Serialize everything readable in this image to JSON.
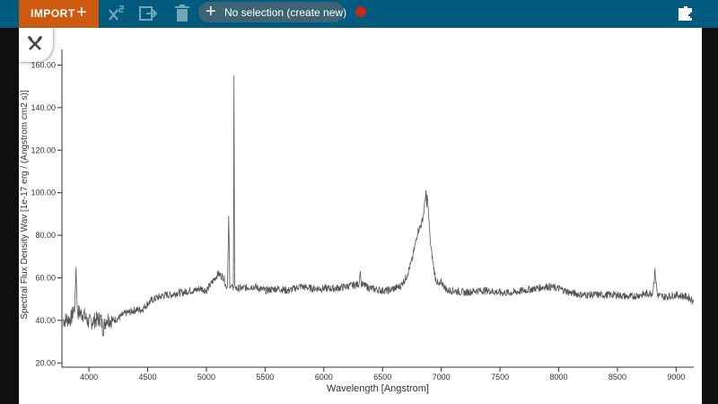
{
  "toolbar": {
    "import_label": "IMPORT",
    "import_plus": "+",
    "selection_plus": "+",
    "selection_label": "No selection (create new)",
    "icons": [
      "x-squared-icon",
      "export-icon",
      "trash-icon",
      "record-dot",
      "plugin-icon"
    ],
    "colors": {
      "bar": "#005b7f",
      "import": "#cc5a10",
      "record": "#c62a1d"
    }
  },
  "chart_data": {
    "type": "line",
    "xlabel": "Wavelength [Angstrom]",
    "ylabel": "Spectral Flux Density Wav [1e-17 erg / (Angstrom cm2 s)]",
    "xlim": [
      3770,
      9150
    ],
    "ylim": [
      18,
      164
    ],
    "x_ticks": [
      "4000",
      "4500",
      "5000",
      "5500",
      "6000",
      "6500",
      "7000",
      "7500",
      "8000",
      "8500",
      "9000"
    ],
    "y_ticks": [
      "20.00",
      "40.00",
      "60.00",
      "80.00",
      "100.00",
      "120.00",
      "140.00",
      "160.00"
    ],
    "series": [
      {
        "color": "#555555",
        "x": [
          3780,
          3850,
          3880,
          3890,
          3900,
          3950,
          4000,
          4050,
          4100,
          4120,
          4150,
          4200,
          4250,
          4300,
          4350,
          4400,
          4450,
          4500,
          4550,
          4600,
          4650,
          4700,
          4750,
          4800,
          4850,
          4900,
          4950,
          5000,
          5050,
          5100,
          5150,
          5170,
          5180,
          5190,
          5200,
          5210,
          5220,
          5230,
          5235,
          5240,
          5250,
          5300,
          5400,
          5500,
          5600,
          5700,
          5800,
          5900,
          6000,
          6100,
          6200,
          6300,
          6310,
          6320,
          6400,
          6500,
          6550,
          6600,
          6650,
          6700,
          6750,
          6780,
          6800,
          6830,
          6850,
          6870,
          6875,
          6880,
          6890,
          6900,
          6910,
          6930,
          6950,
          6980,
          7000,
          7050,
          7100,
          7200,
          7300,
          7400,
          7500,
          7600,
          7700,
          7800,
          7900,
          8000,
          8100,
          8200,
          8300,
          8400,
          8500,
          8600,
          8700,
          8800,
          8820,
          8840,
          8900,
          9000,
          9100,
          9150
        ],
        "y": [
          40,
          41,
          47,
          65,
          44,
          43,
          39,
          40,
          41,
          36,
          41,
          40,
          41,
          43,
          44,
          45,
          45,
          48,
          50,
          51,
          52,
          52,
          53,
          53,
          54,
          54,
          55,
          54,
          58,
          62,
          60,
          55,
          56,
          89,
          55,
          56,
          57,
          54,
          155,
          57,
          55,
          55,
          56,
          54,
          55,
          54,
          56,
          55,
          55,
          55,
          56,
          57,
          63,
          57,
          55,
          54,
          54,
          55,
          56,
          60,
          68,
          76,
          82,
          85,
          90,
          101,
          93,
          99,
          92,
          83,
          75,
          67,
          60,
          56,
          58,
          54,
          54,
          53,
          54,
          54,
          53,
          53,
          54,
          55,
          56,
          55,
          53,
          52,
          52,
          52,
          52,
          51,
          52,
          53,
          63,
          52,
          51,
          52,
          51,
          49
        ]
      }
    ],
    "grid": false
  }
}
